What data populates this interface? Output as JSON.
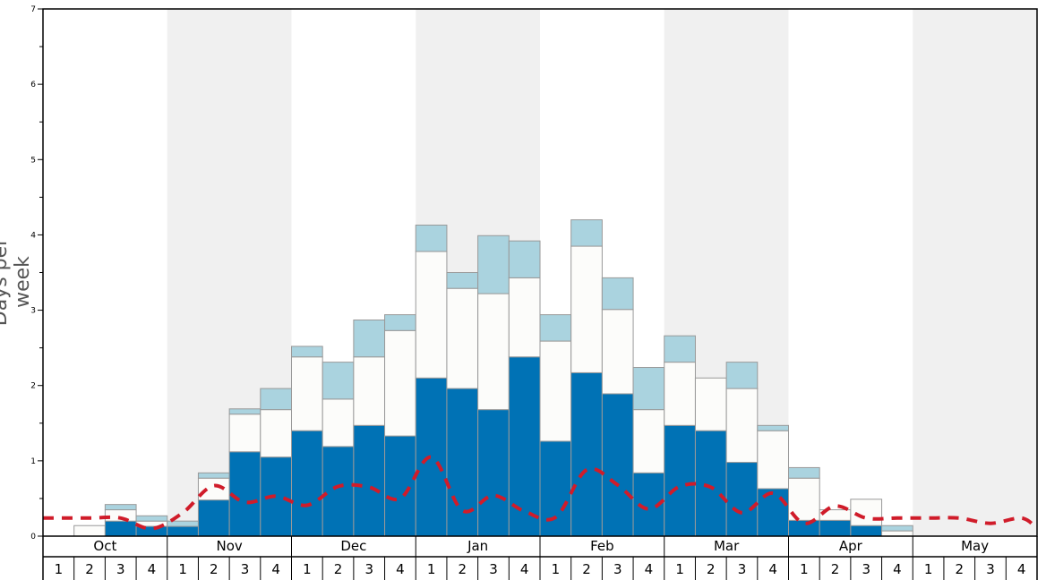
{
  "chart_data": {
    "type": "bar",
    "ylabel": "Days per week",
    "ylim": [
      0,
      7
    ],
    "y_ticks": [
      "0",
      "1",
      "2",
      "3",
      "4",
      "5",
      "6",
      "7"
    ],
    "months": [
      "Oct",
      "Nov",
      "Dec",
      "Jan",
      "Feb",
      "Mar",
      "Apr",
      "May"
    ],
    "week_labels": [
      "1",
      "2",
      "3",
      "4"
    ],
    "categories": [
      "Oct 1",
      "Oct 2",
      "Oct 3",
      "Oct 4",
      "Nov 1",
      "Nov 2",
      "Nov 3",
      "Nov 4",
      "Dec 1",
      "Dec 2",
      "Dec 3",
      "Dec 4",
      "Jan 1",
      "Jan 2",
      "Jan 3",
      "Jan 4",
      "Feb 1",
      "Feb 2",
      "Feb 3",
      "Feb 4",
      "Mar 1",
      "Mar 2",
      "Mar 3",
      "Mar 4",
      "Apr 1",
      "Apr 2",
      "Apr 3",
      "Apr 4",
      "May 1",
      "May 2",
      "May 3",
      "May 4"
    ],
    "series": [
      {
        "color": "#0072b5",
        "values": [
          0,
          0,
          0.2,
          0.13,
          0.13,
          0.48,
          1.12,
          1.05,
          1.4,
          1.19,
          1.47,
          1.33,
          2.1,
          1.96,
          1.68,
          2.38,
          1.26,
          2.17,
          1.89,
          0.84,
          1.47,
          1.4,
          0.98,
          0.63,
          0.21,
          0.21,
          0.14,
          0,
          0,
          0,
          0,
          0
        ]
      },
      {
        "color": "#fcfcfa",
        "values": [
          0,
          0.14,
          0.15,
          0.07,
          0,
          0.29,
          0.5,
          0.63,
          0.98,
          0.63,
          0.91,
          1.4,
          1.68,
          1.33,
          1.54,
          1.05,
          1.33,
          1.68,
          1.12,
          0.84,
          0.84,
          0.7,
          0.98,
          0.77,
          0.56,
          0.14,
          0.35,
          0.07,
          0,
          0,
          0,
          0
        ]
      },
      {
        "color": "#aad3df",
        "values": [
          0,
          0,
          0.07,
          0.07,
          0.07,
          0.07,
          0.07,
          0.28,
          0.14,
          0.49,
          0.49,
          0.21,
          0.35,
          0.21,
          0.77,
          0.49,
          0.35,
          0.35,
          0.42,
          0.56,
          0.35,
          0,
          0.35,
          0.07,
          0.14,
          0,
          0,
          0.07,
          0,
          0,
          0,
          0
        ]
      }
    ],
    "average_line": {
      "color": "#d01c2a",
      "style": "dashed",
      "values": [
        0.24,
        0.24,
        0.24,
        0.1,
        0.31,
        0.67,
        0.45,
        0.53,
        0.41,
        0.66,
        0.65,
        0.5,
        1.05,
        0.34,
        0.54,
        0.33,
        0.25,
        0.88,
        0.68,
        0.36,
        0.66,
        0.65,
        0.31,
        0.57,
        0.17,
        0.4,
        0.24,
        0.24,
        0.24,
        0.24,
        0.17,
        0.24
      ]
    },
    "shading": "alternating months",
    "grid": false,
    "legend": "none"
  }
}
